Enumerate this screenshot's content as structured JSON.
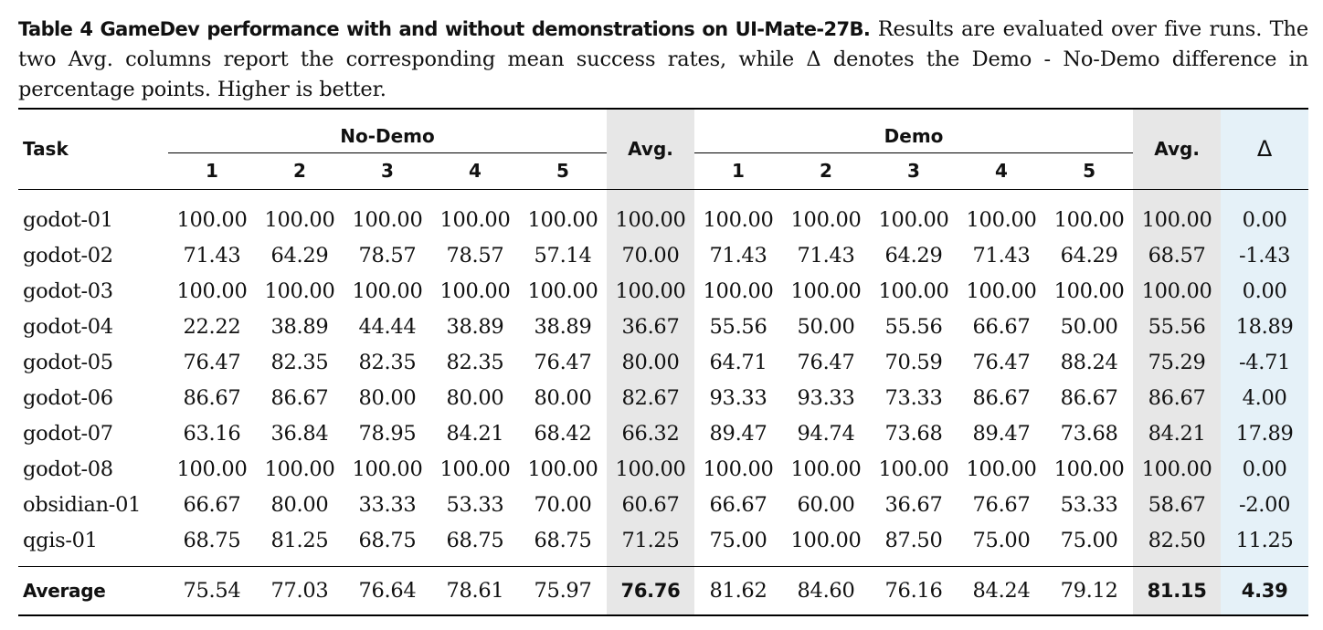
{
  "caption": {
    "lead": "Table 4  GameDev performance with and without demonstrations on UI-Mate-27B.",
    "text": " Results are evaluated over five runs. The two Avg. columns report the corresponding mean success rates, while Δ denotes the Demo - No-Demo difference in percentage points. Higher is better."
  },
  "table": {
    "task_header": "Task",
    "group_nodemo": "No-Demo",
    "group_demo": "Demo",
    "avg_header": "Avg.",
    "delta_header": "Δ",
    "run_headers": [
      "1",
      "2",
      "3",
      "4",
      "5"
    ],
    "rows": [
      {
        "task": "godot-01",
        "nodemo": [
          "100.00",
          "100.00",
          "100.00",
          "100.00",
          "100.00"
        ],
        "nodemo_avg": "100.00",
        "demo": [
          "100.00",
          "100.00",
          "100.00",
          "100.00",
          "100.00"
        ],
        "demo_avg": "100.00",
        "delta": "0.00"
      },
      {
        "task": "godot-02",
        "nodemo": [
          "71.43",
          "64.29",
          "78.57",
          "78.57",
          "57.14"
        ],
        "nodemo_avg": "70.00",
        "demo": [
          "71.43",
          "71.43",
          "64.29",
          "71.43",
          "64.29"
        ],
        "demo_avg": "68.57",
        "delta": "-1.43"
      },
      {
        "task": "godot-03",
        "nodemo": [
          "100.00",
          "100.00",
          "100.00",
          "100.00",
          "100.00"
        ],
        "nodemo_avg": "100.00",
        "demo": [
          "100.00",
          "100.00",
          "100.00",
          "100.00",
          "100.00"
        ],
        "demo_avg": "100.00",
        "delta": "0.00"
      },
      {
        "task": "godot-04",
        "nodemo": [
          "22.22",
          "38.89",
          "44.44",
          "38.89",
          "38.89"
        ],
        "nodemo_avg": "36.67",
        "demo": [
          "55.56",
          "50.00",
          "55.56",
          "66.67",
          "50.00"
        ],
        "demo_avg": "55.56",
        "delta": "18.89"
      },
      {
        "task": "godot-05",
        "nodemo": [
          "76.47",
          "82.35",
          "82.35",
          "82.35",
          "76.47"
        ],
        "nodemo_avg": "80.00",
        "demo": [
          "64.71",
          "76.47",
          "70.59",
          "76.47",
          "88.24"
        ],
        "demo_avg": "75.29",
        "delta": "-4.71"
      },
      {
        "task": "godot-06",
        "nodemo": [
          "86.67",
          "86.67",
          "80.00",
          "80.00",
          "80.00"
        ],
        "nodemo_avg": "82.67",
        "demo": [
          "93.33",
          "93.33",
          "73.33",
          "86.67",
          "86.67"
        ],
        "demo_avg": "86.67",
        "delta": "4.00"
      },
      {
        "task": "godot-07",
        "nodemo": [
          "63.16",
          "36.84",
          "78.95",
          "84.21",
          "68.42"
        ],
        "nodemo_avg": "66.32",
        "demo": [
          "89.47",
          "94.74",
          "73.68",
          "89.47",
          "73.68"
        ],
        "demo_avg": "84.21",
        "delta": "17.89"
      },
      {
        "task": "godot-08",
        "nodemo": [
          "100.00",
          "100.00",
          "100.00",
          "100.00",
          "100.00"
        ],
        "nodemo_avg": "100.00",
        "demo": [
          "100.00",
          "100.00",
          "100.00",
          "100.00",
          "100.00"
        ],
        "demo_avg": "100.00",
        "delta": "0.00"
      },
      {
        "task": "obsidian-01",
        "nodemo": [
          "66.67",
          "80.00",
          "33.33",
          "53.33",
          "70.00"
        ],
        "nodemo_avg": "60.67",
        "demo": [
          "66.67",
          "60.00",
          "36.67",
          "76.67",
          "53.33"
        ],
        "demo_avg": "58.67",
        "delta": "-2.00"
      },
      {
        "task": "qgis-01",
        "nodemo": [
          "68.75",
          "81.25",
          "68.75",
          "68.75",
          "68.75"
        ],
        "nodemo_avg": "71.25",
        "demo": [
          "75.00",
          "100.00",
          "87.50",
          "75.00",
          "75.00"
        ],
        "demo_avg": "82.50",
        "delta": "11.25"
      }
    ],
    "average": {
      "task": "Average",
      "nodemo": [
        "75.54",
        "77.03",
        "76.64",
        "78.61",
        "75.97"
      ],
      "nodemo_avg": "76.76",
      "demo": [
        "81.62",
        "84.60",
        "76.16",
        "84.24",
        "79.12"
      ],
      "demo_avg": "81.15",
      "delta": "4.39"
    }
  }
}
